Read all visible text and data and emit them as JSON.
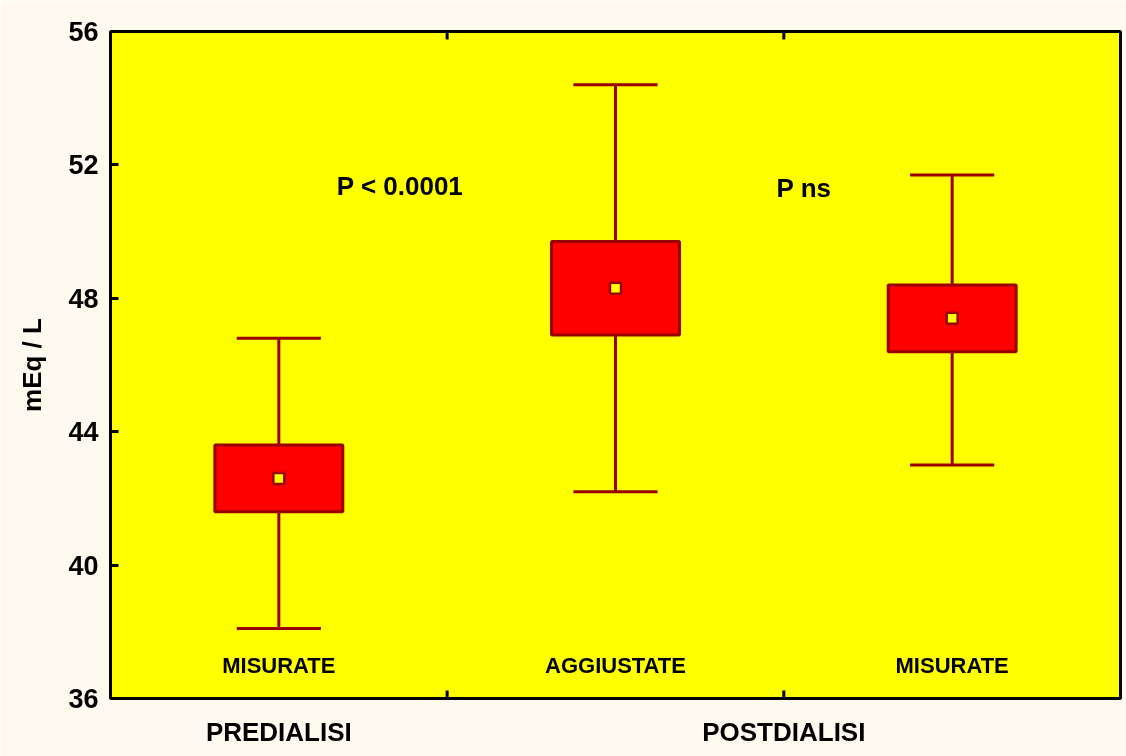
{
  "chart_data": {
    "type": "box",
    "ylabel": "mEq / L",
    "categories": [
      "MISURATE",
      "AGGIUSTATE",
      "MISURATE"
    ],
    "ylim": [
      36,
      56
    ],
    "yticks": [
      36,
      40,
      44,
      48,
      52,
      56
    ],
    "series": [
      {
        "color": "#ff0000",
        "boxes": [
          {
            "low": 38.1,
            "q1": 41.6,
            "q3": 43.6,
            "high": 46.8,
            "mean": 42.6
          },
          {
            "low": 42.2,
            "q1": 46.9,
            "q3": 49.7,
            "high": 54.4,
            "mean": 48.3
          },
          {
            "low": 43.0,
            "q1": 46.4,
            "q3": 48.4,
            "high": 51.7,
            "mean": 47.4
          }
        ]
      }
    ],
    "annotations": [
      "P < 0.0001",
      "P ns",
      "PREDIALISI",
      "POSTDIALISI"
    ]
  }
}
